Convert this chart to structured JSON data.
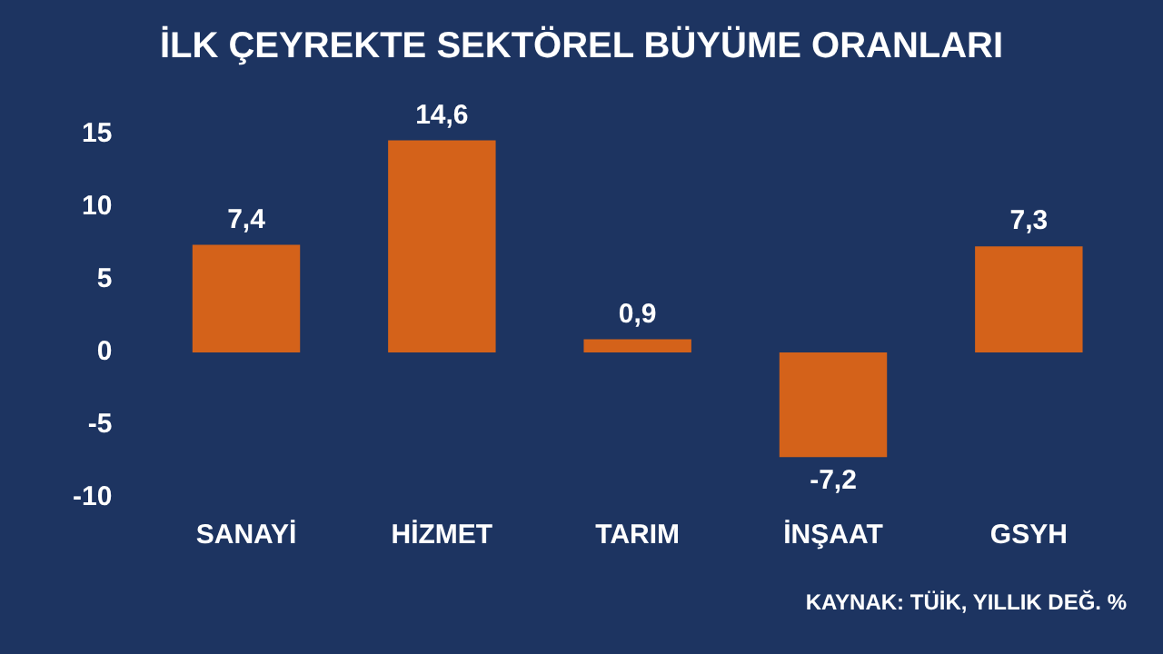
{
  "chart_data": {
    "type": "bar",
    "title": "İLK ÇEYREKTE SEKTÖREL BÜYÜME ORANLARI",
    "categories": [
      "SANAYİ",
      "HİZMET",
      "TARIM",
      "İNŞAAT",
      "GSYH"
    ],
    "values": [
      7.4,
      14.6,
      0.9,
      -7.2,
      7.3
    ],
    "value_labels": [
      "7,4",
      "14,6",
      "0,9",
      "-7,2",
      "7,3"
    ],
    "color": "#d4621a",
    "ylim": [
      -10,
      15
    ],
    "yticks": [
      -10,
      -5,
      0,
      5,
      10,
      15
    ],
    "grid": false,
    "legend": false,
    "annotations": [
      "KAYNAK: TÜİK, YILLIK DEĞ. %"
    ]
  }
}
